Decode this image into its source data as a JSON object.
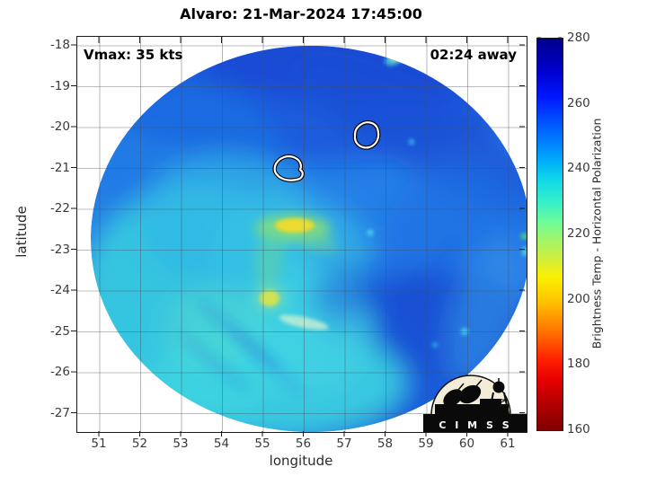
{
  "title": "Alvaro: 21-Mar-2024 17:45:00",
  "annotations": {
    "vmax_label": "Vmax: 35 kts",
    "time_away_label": "02:24 away"
  },
  "axes": {
    "x": {
      "label": "longitude",
      "ticks": [
        51,
        52,
        53,
        54,
        55,
        56,
        57,
        58,
        59,
        60,
        61
      ]
    },
    "y": {
      "label": "latitude",
      "ticks": [
        -18,
        -19,
        -20,
        -21,
        -22,
        -23,
        -24,
        -25,
        -26,
        -27
      ]
    }
  },
  "colorbar": {
    "label": "Brightness Temp - Horizontal Polarization",
    "ticks": [
      280,
      260,
      240,
      220,
      200,
      180,
      160
    ],
    "min": 160,
    "max": 280
  },
  "logo": {
    "name": "CIMSS",
    "text": "C I M S S"
  },
  "chart_data": {
    "type": "heatmap",
    "title": "Alvaro: 21-Mar-2024 17:45:00",
    "storm": {
      "name": "Alvaro",
      "datetime": "21-Mar-2024 17:45:00",
      "vmax_kts": 35,
      "time_away": "02:24 away"
    },
    "xlabel": "longitude",
    "ylabel": "latitude",
    "xticks": [
      51,
      52,
      53,
      54,
      55,
      56,
      57,
      58,
      59,
      60,
      61
    ],
    "yticks": [
      -18,
      -19,
      -20,
      -21,
      -22,
      -23,
      -24,
      -25,
      -26,
      -27
    ],
    "xlim": [
      50.45,
      61.44
    ],
    "ylim": [
      -27.45,
      -17.78
    ],
    "grid": true,
    "colorbar": {
      "label": "Brightness Temp - Horizontal Polarization",
      "lim": [
        160,
        280
      ],
      "ticks": [
        280,
        260,
        240,
        220,
        200,
        180,
        160
      ],
      "colormap": "jet-reversed (160=dark red warm, 280=dark navy cold axis inverted)"
    },
    "swath": {
      "shape": "circular",
      "center": {
        "lon": 56.0,
        "lat": -22.9
      },
      "radius_deg": 5.3
    },
    "features": [
      {
        "lon": 55.9,
        "lat": -19.2,
        "bt_k": 260,
        "desc": "broad dark-blue region across northern half of swath"
      },
      {
        "lon": 57.9,
        "lat": -19.4,
        "bt_k": 266,
        "desc": "darker blue diagonal band along NE swath edge"
      },
      {
        "lon": 58.3,
        "lat": -18.4,
        "bt_k": 226,
        "desc": "small yellow-cyan fleck on northern swath edge"
      },
      {
        "lon": 55.7,
        "lat": -22.65,
        "bt_k": 212,
        "desc": "yellow-green curved convective band near storm center"
      },
      {
        "lon": 55.2,
        "lat": -24.4,
        "bt_k": 221,
        "desc": "small yellow-green spot south of center"
      },
      {
        "lon": 55.6,
        "lat": -24.9,
        "bt_k": 234,
        "desc": "thin pale speckled streak"
      },
      {
        "lon": 53.3,
        "lat": -23.8,
        "bt_k": 240,
        "desc": "large cyan/turquoise region in SW quadrant"
      },
      {
        "lon": 58.2,
        "lat": -25.3,
        "bt_k": 262,
        "desc": "dark blue region in SE quadrant"
      },
      {
        "lon": 55.6,
        "lat": -21.1,
        "contour": true,
        "desc": "white contour loop"
      },
      {
        "lon": 57.7,
        "lat": -20.3,
        "contour": true,
        "desc": "white contour loop"
      }
    ]
  }
}
